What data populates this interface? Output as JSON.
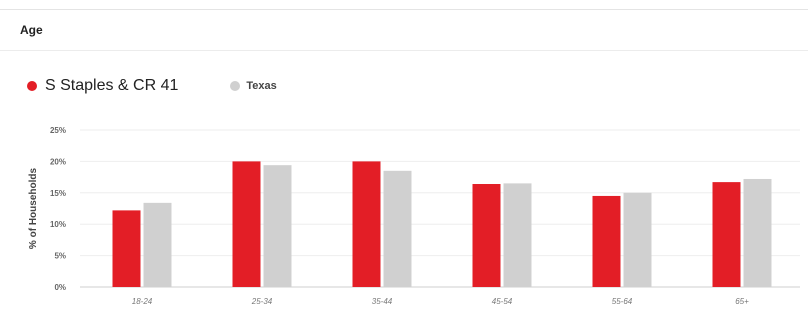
{
  "section": {
    "title": "Age"
  },
  "chart_data": {
    "type": "bar",
    "ylabel": "% of Households",
    "xlabel": "",
    "categories": [
      "18-24",
      "25-34",
      "35-44",
      "45-54",
      "55-64",
      "65+"
    ],
    "ylim": [
      0,
      25
    ],
    "yticks": [
      0,
      5,
      10,
      15,
      20,
      25
    ],
    "ytick_labels": [
      "0%",
      "5%",
      "10%",
      "15%",
      "20%",
      "25%"
    ],
    "grid": true,
    "legend_position": "top-left",
    "series": [
      {
        "name": "S Staples & CR 41",
        "color": "#e31e26",
        "values": [
          12.2,
          20.0,
          20.0,
          16.4,
          14.5,
          16.7
        ]
      },
      {
        "name": "Texas",
        "color": "#d0d0d0",
        "values": [
          13.4,
          19.4,
          18.5,
          16.5,
          15.0,
          17.2
        ]
      }
    ]
  }
}
